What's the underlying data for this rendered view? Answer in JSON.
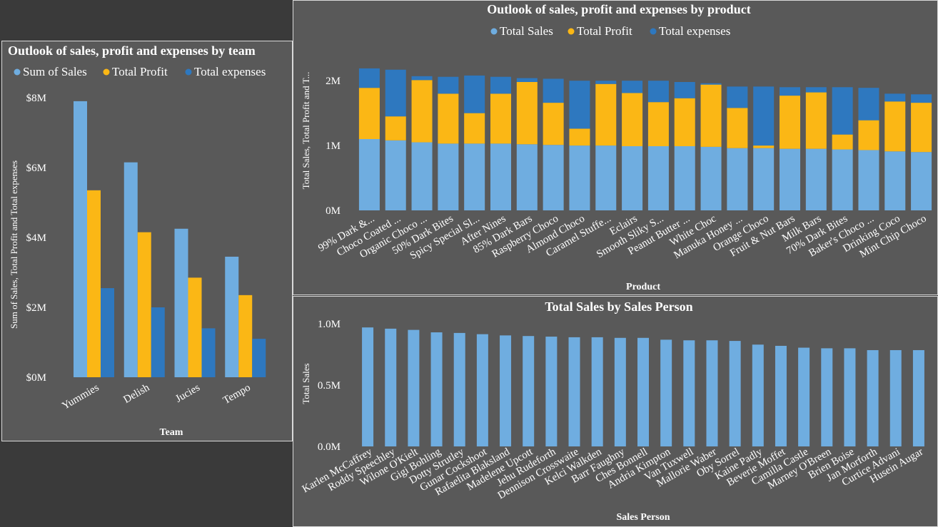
{
  "chart_data": [
    {
      "type": "bar",
      "title": "Outlook of sales, profit and expenses by team",
      "xlabel": "Team",
      "ylabel": "Sum of Sales, Total Profit and Total expenses",
      "ylim": [
        0,
        8000000
      ],
      "yticks": [
        0,
        2000000,
        4000000,
        6000000,
        8000000
      ],
      "ytick_labels": [
        "$0M",
        "$2M",
        "$4M",
        "$6M",
        "$8M"
      ],
      "legend_position": "top",
      "categories": [
        "Yummies",
        "Delish",
        "Jucies",
        "Tempo"
      ],
      "series": [
        {
          "name": "Sum of Sales",
          "color": "#6fade0",
          "values": [
            7900000,
            6150000,
            4250000,
            3450000
          ]
        },
        {
          "name": "Total Profit",
          "color": "#fbb715",
          "values": [
            5350000,
            4150000,
            2850000,
            2350000
          ]
        },
        {
          "name": "Total expenses",
          "color": "#2e78bf",
          "values": [
            2550000,
            2000000,
            1400000,
            1100000
          ]
        }
      ]
    },
    {
      "type": "bar",
      "stacked": true,
      "title": "Outlook of sales, profit and expenses by product",
      "xlabel": "Product",
      "ylabel": "Total Sales, Total Profit and T...",
      "ylim": [
        0,
        2200000
      ],
      "yticks": [
        0,
        1000000,
        2000000
      ],
      "ytick_labels": [
        "0M",
        "1M",
        "2M"
      ],
      "legend_position": "top",
      "categories": [
        "99% Dark &...",
        "Choco Coated ...",
        "Organic Choco ...",
        "50% Dark Bites",
        "Spicy Special Sl...",
        "After Nines",
        "85% Dark Bars",
        "Raspberry Choco",
        "Almond Choco",
        "Caramel Stuffe...",
        "Eclairs",
        "Smooth Sliky S...",
        "Peanut Butter ...",
        "White Choc",
        "Manuka Honey ...",
        "Orange Choco",
        "Fruit & Nut Bars",
        "Milk Bars",
        "70% Dark Bites",
        "Baker's Choco ...",
        "Drinking Coco",
        "Mint Chip Choco"
      ],
      "series": [
        {
          "name": "Total Sales",
          "color": "#6fade0",
          "values": [
            1100000,
            1080000,
            1050000,
            1030000,
            1030000,
            1030000,
            1020000,
            1010000,
            1000000,
            1000000,
            990000,
            990000,
            990000,
            980000,
            960000,
            960000,
            950000,
            950000,
            940000,
            930000,
            910000,
            900000
          ]
        },
        {
          "name": "Total Profit",
          "color": "#fbb715",
          "values": [
            790000,
            370000,
            960000,
            770000,
            470000,
            770000,
            960000,
            650000,
            260000,
            950000,
            820000,
            680000,
            740000,
            960000,
            620000,
            40000,
            820000,
            870000,
            230000,
            460000,
            770000,
            760000
          ]
        },
        {
          "name": "Total expenses",
          "color": "#2e78bf",
          "values": [
            300000,
            720000,
            60000,
            260000,
            580000,
            260000,
            60000,
            370000,
            740000,
            50000,
            190000,
            330000,
            250000,
            20000,
            330000,
            910000,
            130000,
            80000,
            730000,
            500000,
            120000,
            130000
          ]
        }
      ]
    },
    {
      "type": "bar",
      "title": "Total Sales by Sales Person",
      "xlabel": "Sales Person",
      "ylabel": "Total Sales",
      "ylim": [
        0,
        1000000
      ],
      "yticks": [
        0,
        500000,
        1000000
      ],
      "ytick_labels": [
        "0.0M",
        "0.5M",
        "1.0M"
      ],
      "categories": [
        "Karlen McCaffrey",
        "Roddy Speechley",
        "Wilone O'Kielt",
        "Gigi Bohling",
        "Dotty Strutley",
        "Gunar Cockshoot",
        "Rafaelita Blaksland",
        "Madelene Upcott",
        "Jehu Rudeforth",
        "Dennison Crosswaite",
        "Kelci Walkden",
        "Barr Faughny",
        "Ches Bonnell",
        "Andria Kimpton",
        "Van Tuxwell",
        "Mallorie Waber",
        "Oby Sorrel",
        "Kaine Padly",
        "Beverie Moffet",
        "Camilla Castle",
        "Marney O'Breen",
        "Brien Boise",
        "Jan Morforth",
        "Curtice Advani",
        "Husein Augar"
      ],
      "series": [
        {
          "color": "#6fade0",
          "values": [
            970000,
            960000,
            950000,
            930000,
            925000,
            915000,
            905000,
            900000,
            895000,
            890000,
            890000,
            885000,
            885000,
            870000,
            865000,
            865000,
            860000,
            830000,
            820000,
            805000,
            800000,
            800000,
            785000,
            785000,
            785000
          ]
        }
      ]
    }
  ]
}
